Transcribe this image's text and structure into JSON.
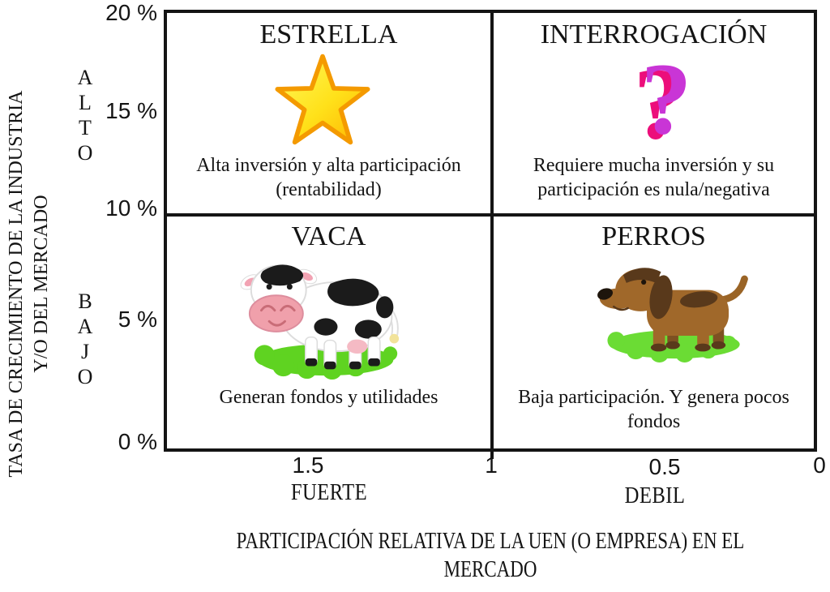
{
  "colors": {
    "border": "#141414",
    "text": "#141414",
    "star_yellow": "#ffe11a",
    "star_orange": "#f49a00",
    "question_front": "#c935d6",
    "question_back": "#ec0e7b",
    "grass_green": "#5fd321",
    "cow_spot_black": "#1b1b1b",
    "cow_muzzle_pink": "#f0a0ab",
    "dog_brown": "#a0682a",
    "dog_dark_brown": "#59391b"
  },
  "y_axis": {
    "title_lines": [
      "TASA DE CRECIMIENTO DE LA INDUSTRIA",
      "Y/O DEL MERCADO"
    ],
    "ticks": [
      "20 %",
      "15 %",
      "10 %",
      "5 %",
      "0 %"
    ],
    "zones": [
      "ALTO",
      "BAJO"
    ]
  },
  "x_axis": {
    "ticks": [
      "1.5",
      "1",
      "0.5",
      "0"
    ],
    "zones": [
      "FUERTE",
      "DEBIL"
    ],
    "title_lines": [
      "PARTICIPACIÓN RELATIVA DE LA UEN (O EMPRESA) EN EL",
      "MERCADO"
    ]
  },
  "quadrants": {
    "estrella": {
      "title": "ESTRELLA",
      "icon": "star-icon",
      "desc_lines": [
        "Alta inversión y alta participación",
        "(rentabilidad)"
      ]
    },
    "interrogacion": {
      "title": "INTERROGACIÓN",
      "icon": "question-mark-icon",
      "glyph": "?",
      "desc_lines": [
        "Requiere mucha inversión y su",
        "participación es nula/negativa"
      ]
    },
    "vaca": {
      "title": "VACA",
      "icon": "cow-icon",
      "desc_lines": [
        "Generan fondos y utilidades"
      ]
    },
    "perros": {
      "title": "PERROS",
      "icon": "dog-icon",
      "desc_lines": [
        "Baja participación. Y genera pocos",
        "fondos"
      ]
    }
  }
}
